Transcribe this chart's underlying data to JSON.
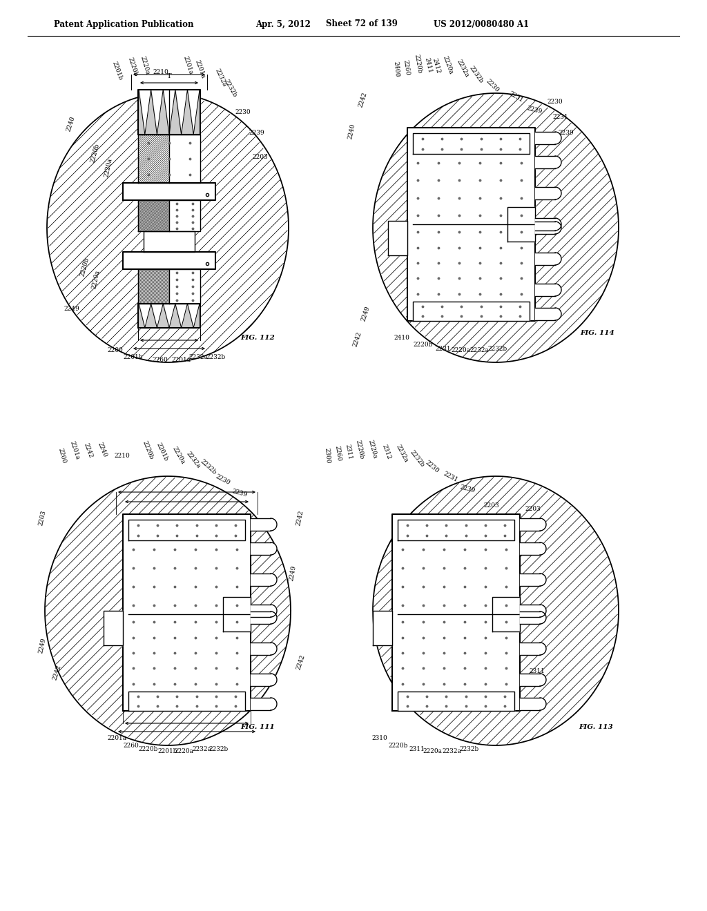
{
  "background_color": "#ffffff",
  "line_color": "#000000",
  "header_left": "Patent Application Publication",
  "header_mid1": "Apr. 5, 2012",
  "header_mid2": "Sheet 72 of 139",
  "header_right": "US 2012/0080480 A1",
  "fig112_label": "FIG. 112",
  "fig114_label": "FIG. 114",
  "fig111_label": "FIG. 111",
  "fig113_label": "FIG. 113"
}
